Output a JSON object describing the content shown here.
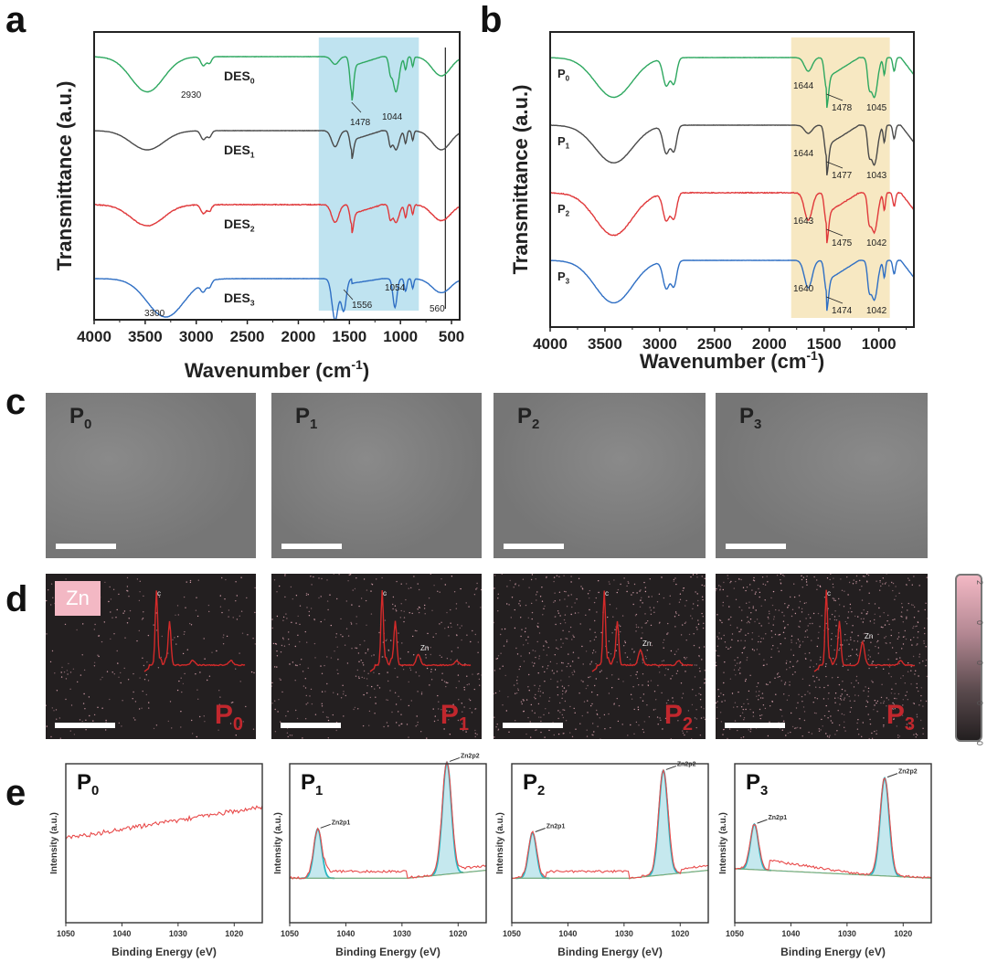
{
  "panels": {
    "a": "a",
    "b": "b",
    "c": "c",
    "d": "d",
    "e": "e"
  },
  "chart_data": [
    {
      "id": "a",
      "type": "line",
      "title": "",
      "xlabel": "Wavenumber (cm-1)",
      "xlabel_main": "Wavenumber (cm",
      "xlabel_sup": "-1",
      "xlabel_end": ")",
      "ylabel": "Transmittance (a.u.)",
      "xlim": [
        4000,
        420
      ],
      "xticks": [
        4000,
        3500,
        3000,
        2500,
        2000,
        1500,
        1000,
        500
      ],
      "highlight_region": {
        "from": 1800,
        "to": 820,
        "color": "#bfe3f0"
      },
      "vertical_line": 560,
      "series": [
        {
          "name": "DES0",
          "label_main": "DES",
          "label_sub": "0",
          "color": "#2ea860"
        },
        {
          "name": "DES1",
          "label_main": "DES",
          "label_sub": "1",
          "color": "#4a4a4a"
        },
        {
          "name": "DES2",
          "label_main": "DES",
          "label_sub": "2",
          "color": "#e0393b"
        },
        {
          "name": "DES3",
          "label_main": "DES",
          "label_sub": "3",
          "color": "#2f6fc4"
        }
      ],
      "annotations": [
        {
          "text": "2930",
          "x": 2930,
          "series": 0
        },
        {
          "text": "1478",
          "x": 1478,
          "series": 0
        },
        {
          "text": "1044",
          "x": 1044,
          "series": 0
        },
        {
          "text": "3300",
          "x": 3300,
          "series": 3
        },
        {
          "text": "1556",
          "x": 1556,
          "series": 3
        },
        {
          "text": "1054",
          "x": 1054,
          "series": 3
        },
        {
          "text": "560",
          "x": 560,
          "series": 3
        }
      ]
    },
    {
      "id": "b",
      "type": "line",
      "title": "",
      "xlabel": "Wavenumber (cm-1)",
      "xlabel_main": "Wavenumber (cm",
      "xlabel_sup": "-1",
      "xlabel_end": ")",
      "ylabel": "Transmittance (a.u.)",
      "xlim": [
        4000,
        680
      ],
      "xticks": [
        4000,
        3500,
        3000,
        2500,
        2000,
        1500,
        1000
      ],
      "highlight_region": {
        "from": 1800,
        "to": 900,
        "color": "#f7e8c2"
      },
      "series": [
        {
          "name": "P0",
          "label_main": "P",
          "label_sub": "0",
          "color": "#2ea860",
          "peaks": [
            "1644",
            "1478",
            "1045"
          ]
        },
        {
          "name": "P1",
          "label_main": "P",
          "label_sub": "1",
          "color": "#4a4a4a",
          "peaks": [
            "1644",
            "1477",
            "1043"
          ]
        },
        {
          "name": "P2",
          "label_main": "P",
          "label_sub": "2",
          "color": "#e0393b",
          "peaks": [
            "1643",
            "1475",
            "1042"
          ]
        },
        {
          "name": "P3",
          "label_main": "P",
          "label_sub": "3",
          "color": "#2f6fc4",
          "peaks": [
            "1640",
            "1474",
            "1042"
          ]
        }
      ]
    },
    {
      "id": "e",
      "type": "line",
      "xlabel": "Binding Energy (eV)",
      "ylabel": "Intensity (a.u.)",
      "xlim": [
        1050,
        1015
      ],
      "xticks": [
        1050,
        1040,
        1030,
        1020
      ],
      "plots": [
        {
          "name": "P0",
          "label_main": "P",
          "label_sub": "0",
          "peaks": []
        },
        {
          "name": "P1",
          "label_main": "P",
          "label_sub": "1",
          "peaks": [
            {
              "label": "Zn2p1",
              "x": 1045,
              "height": 0.45
            },
            {
              "label": "Zn2p2",
              "x": 1022,
              "height": 0.88
            }
          ]
        },
        {
          "name": "P2",
          "label_main": "P",
          "label_sub": "2",
          "peaks": [
            {
              "label": "Zn2p1",
              "x": 1046.3,
              "height": 0.42
            },
            {
              "label": "Zn2p2",
              "x": 1023,
              "height": 0.82
            }
          ]
        },
        {
          "name": "P3",
          "label_main": "P",
          "label_sub": "3",
          "peaks": [
            {
              "label": "Zn2p1",
              "x": 1046.5,
              "height": 0.42
            },
            {
              "label": "Zn2p2",
              "x": 1023.3,
              "height": 0.77
            }
          ]
        }
      ],
      "colors": {
        "raw": "#e84a4a",
        "fit": "#2bb5c0",
        "fill": "#bfe6ec",
        "baseline": "#d4a12a"
      }
    }
  ],
  "sem_images": [
    {
      "label_main": "P",
      "label_sub": "0"
    },
    {
      "label_main": "P",
      "label_sub": "1"
    },
    {
      "label_main": "P",
      "label_sub": "2"
    },
    {
      "label_main": "P",
      "label_sub": "3"
    }
  ],
  "eds_maps": {
    "element": "Zn",
    "spectrum_labels": {
      "c": "c",
      "zn": "Zn"
    },
    "tiles": [
      {
        "label_main": "P",
        "label_sub": "0",
        "zn_peak": 0.05
      },
      {
        "label_main": "P",
        "label_sub": "1",
        "zn_peak": 0.12
      },
      {
        "label_main": "P",
        "label_sub": "2",
        "zn_peak": 0.17
      },
      {
        "label_main": "P",
        "label_sub": "3",
        "zn_peak": 0.25
      }
    ],
    "colorbar_ticks": [
      "2",
      "0",
      "0",
      "0",
      "0"
    ]
  }
}
